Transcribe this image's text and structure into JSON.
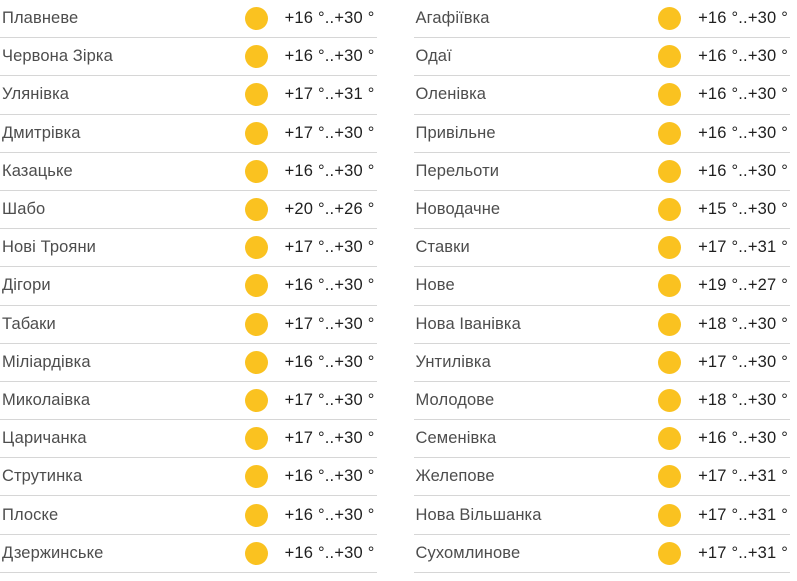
{
  "colors": {
    "sun": "#FAC220",
    "divider": "#D6D6D6",
    "location_name_text": "#4D4D4D",
    "temperature_text": "#1F1F1F",
    "background": "#FFFFFF"
  },
  "weather_list": {
    "columns": [
      {
        "rows": [
          {
            "name": "Плавневе",
            "icon": "sun-icon",
            "temp": "+16 °..+30 °"
          },
          {
            "name": "Червона Зірка",
            "icon": "sun-icon",
            "temp": "+16 °..+30 °"
          },
          {
            "name": "Улянівка",
            "icon": "sun-icon",
            "temp": "+17 °..+31 °"
          },
          {
            "name": "Дмитрівка",
            "icon": "sun-icon",
            "temp": "+17 °..+30 °"
          },
          {
            "name": "Казацьке",
            "icon": "sun-icon",
            "temp": "+16 °..+30 °"
          },
          {
            "name": "Шабо",
            "icon": "sun-icon",
            "temp": "+20 °..+26 °"
          },
          {
            "name": "Нові Трояни",
            "icon": "sun-icon",
            "temp": "+17 °..+30 °"
          },
          {
            "name": "Дігори",
            "icon": "sun-icon",
            "temp": "+16 °..+30 °"
          },
          {
            "name": "Табаки",
            "icon": "sun-icon",
            "temp": "+17 °..+30 °"
          },
          {
            "name": "Міліардівка",
            "icon": "sun-icon",
            "temp": "+16 °..+30 °"
          },
          {
            "name": "Миколаівка",
            "icon": "sun-icon",
            "temp": "+17 °..+30 °"
          },
          {
            "name": "Царичанка",
            "icon": "sun-icon",
            "temp": "+17 °..+30 °"
          },
          {
            "name": "Струтинка",
            "icon": "sun-icon",
            "temp": "+16 °..+30 °"
          },
          {
            "name": "Плоске",
            "icon": "sun-icon",
            "temp": "+16 °..+30 °"
          },
          {
            "name": "Дзержинське",
            "icon": "sun-icon",
            "temp": "+16 °..+30 °"
          }
        ]
      },
      {
        "rows": [
          {
            "name": "Агафіївка",
            "icon": "sun-icon",
            "temp": "+16 °..+30 °"
          },
          {
            "name": "Одаї",
            "icon": "sun-icon",
            "temp": "+16 °..+30 °"
          },
          {
            "name": "Оленівка",
            "icon": "sun-icon",
            "temp": "+16 °..+30 °"
          },
          {
            "name": "Привільне",
            "icon": "sun-icon",
            "temp": "+16 °..+30 °"
          },
          {
            "name": "Перельоти",
            "icon": "sun-icon",
            "temp": "+16 °..+30 °"
          },
          {
            "name": "Новодачне",
            "icon": "sun-icon",
            "temp": "+15 °..+30 °"
          },
          {
            "name": "Ставки",
            "icon": "sun-icon",
            "temp": "+17 °..+31 °"
          },
          {
            "name": "Нове",
            "icon": "sun-icon",
            "temp": "+19 °..+27 °"
          },
          {
            "name": "Нова Іванівка",
            "icon": "sun-icon",
            "temp": "+18 °..+30 °"
          },
          {
            "name": "Унтилівка",
            "icon": "sun-icon",
            "temp": "+17 °..+30 °"
          },
          {
            "name": "Молодове",
            "icon": "sun-icon",
            "temp": "+18 °..+30 °"
          },
          {
            "name": "Семенівка",
            "icon": "sun-icon",
            "temp": "+16 °..+30 °"
          },
          {
            "name": "Желепове",
            "icon": "sun-icon",
            "temp": "+17 °..+31 °"
          },
          {
            "name": "Нова Вільшанка",
            "icon": "sun-icon",
            "temp": "+17 °..+31 °"
          },
          {
            "name": "Сухомлинове",
            "icon": "sun-icon",
            "temp": "+17 °..+31 °"
          }
        ]
      }
    ]
  }
}
